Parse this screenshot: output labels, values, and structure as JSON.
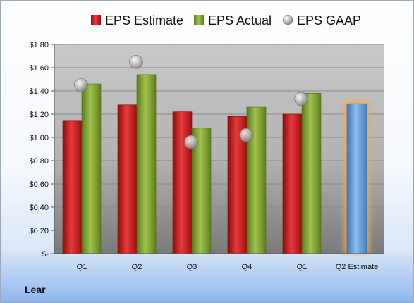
{
  "company_label": "Lear",
  "chart_data": {
    "type": "bar",
    "title": "",
    "xlabel": "",
    "ylabel": "",
    "ylim": [
      0,
      1.8
    ],
    "yticks": [
      0,
      0.2,
      0.4,
      0.6,
      0.8,
      1.0,
      1.2,
      1.4,
      1.6,
      1.8
    ],
    "ytick_labels": [
      "$-",
      "$0.20",
      "$0.40",
      "$0.60",
      "$0.80",
      "$1.00",
      "$1.20",
      "$1.40",
      "$1.60",
      "$1.80"
    ],
    "categories": [
      "Q1",
      "Q2",
      "Q3",
      "Q4",
      "Q1",
      "Q2 Estimate"
    ],
    "grid": true,
    "legend_position": "top",
    "series": [
      {
        "name": "EPS Estimate",
        "type": "bar",
        "color": "#d42020",
        "values": [
          1.14,
          1.28,
          1.22,
          1.18,
          1.2,
          null
        ]
      },
      {
        "name": "EPS Actual",
        "type": "bar",
        "color": "#86a83a",
        "values": [
          1.46,
          1.54,
          1.08,
          1.26,
          1.38,
          null
        ]
      },
      {
        "name": "EPS GAAP",
        "type": "scatter",
        "color": "#b8b8b8",
        "values": [
          1.45,
          1.65,
          0.96,
          1.02,
          1.33,
          null
        ]
      }
    ],
    "estimate_bar": {
      "category": "Q2 Estimate",
      "value": 1.29,
      "color": "#6fa3db",
      "glow": "#f5a94a"
    }
  }
}
